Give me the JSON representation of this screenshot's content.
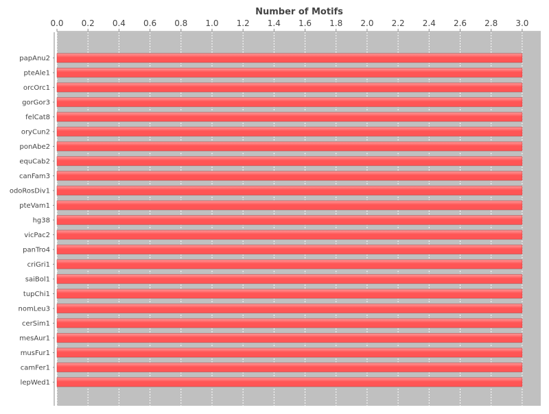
{
  "chart_data": {
    "type": "bar",
    "orientation": "horizontal",
    "title": "Number of Motifs",
    "xlabel": "",
    "ylabel": "",
    "xlim": [
      0,
      3.12
    ],
    "x_ticks": [
      "0.0",
      "0.2",
      "0.4",
      "0.6",
      "0.8",
      "1.0",
      "1.2",
      "1.4",
      "1.6",
      "1.8",
      "2.0",
      "2.2",
      "2.4",
      "2.6",
      "2.8",
      "3.0"
    ],
    "x_tick_values": [
      0.0,
      0.2,
      0.4,
      0.6,
      0.8,
      1.0,
      1.2,
      1.4,
      1.6,
      1.8,
      2.0,
      2.2,
      2.4,
      2.6,
      2.8,
      3.0
    ],
    "axis_position": "top",
    "grid": true,
    "legend": "none",
    "categories": [
      "papAnu2",
      "pteAle1",
      "orcOrc1",
      "gorGor3",
      "felCat8",
      "oryCun2",
      "ponAbe2",
      "equCab2",
      "canFam3",
      "odoRosDiv1",
      "pteVam1",
      "hg38",
      "vicPac2",
      "panTro4",
      "criGri1",
      "saiBol1",
      "tupChi1",
      "nomLeu3",
      "cerSim1",
      "mesAur1",
      "musFur1",
      "camFer1",
      "lepWed1"
    ],
    "values": [
      3,
      3,
      3,
      3,
      3,
      3,
      3,
      3,
      3,
      3,
      3,
      3,
      3,
      3,
      3,
      3,
      3,
      3,
      3,
      3,
      3,
      3,
      3
    ],
    "colors": {
      "plot_background": "#c0c0c0",
      "bar_fill": "#ff5555",
      "bar_highlight": "#ff9a9a",
      "bar_edge": "#cc3b3b",
      "grid": "#ffffff",
      "axis": "#888888",
      "text": "#444444"
    }
  }
}
